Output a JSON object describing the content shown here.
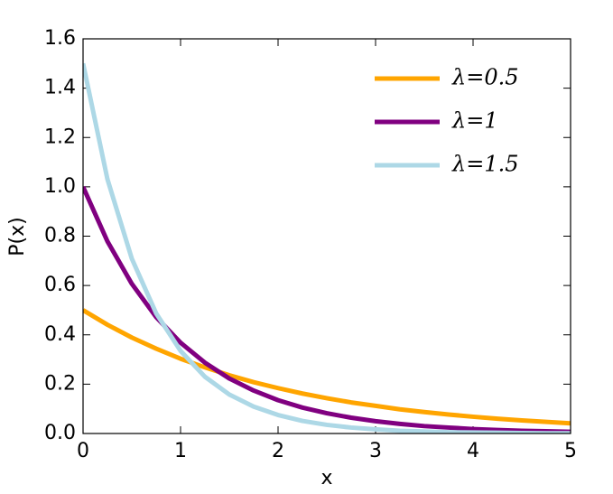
{
  "chart_data": {
    "type": "line",
    "x_label": "x",
    "y_label": "P(x)",
    "x": [
      0,
      0.25,
      0.5,
      0.75,
      1,
      1.25,
      1.5,
      1.75,
      2,
      2.25,
      2.5,
      2.75,
      3,
      3.25,
      3.5,
      3.75,
      4,
      4.25,
      4.5,
      4.75,
      5
    ],
    "series": [
      {
        "name": "λ=0.5",
        "color": "#ffa500",
        "values": [
          0.5,
          0.441,
          0.389,
          0.344,
          0.303,
          0.268,
          0.236,
          0.208,
          0.184,
          0.162,
          0.143,
          0.126,
          0.112,
          0.098,
          0.087,
          0.077,
          0.068,
          0.06,
          0.053,
          0.047,
          0.041
        ]
      },
      {
        "name": "λ=1",
        "color": "#800080",
        "values": [
          1,
          0.779,
          0.607,
          0.472,
          0.368,
          0.287,
          0.223,
          0.174,
          0.135,
          0.105,
          0.082,
          0.064,
          0.05,
          0.039,
          0.03,
          0.024,
          0.018,
          0.014,
          0.011,
          0.009,
          0.007
        ]
      },
      {
        "name": "λ=1.5",
        "color": "#add8e6",
        "values": [
          1.5,
          1.031,
          0.709,
          0.487,
          0.335,
          0.23,
          0.158,
          0.109,
          0.075,
          0.051,
          0.035,
          0.024,
          0.017,
          0.011,
          0.008,
          0.005,
          0.004,
          0.003,
          0.002,
          0.001,
          0.001
        ]
      }
    ],
    "xlim": [
      0,
      5
    ],
    "xticks": [
      0,
      1,
      2,
      3,
      4,
      5
    ],
    "ylim": [
      0,
      1.6
    ],
    "yticks": [
      {
        "value": 0,
        "label": "0.0"
      },
      0.2,
      0.4,
      0.6,
      0.8,
      {
        "value": 1,
        "label": "1.0"
      },
      1.2,
      1.4,
      1.6
    ],
    "legend": "upper right",
    "grid": false
  }
}
